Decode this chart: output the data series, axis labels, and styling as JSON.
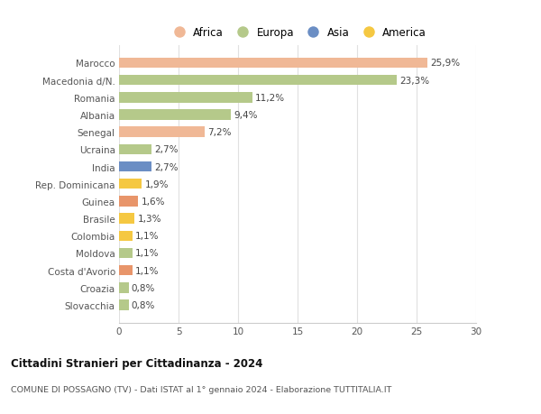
{
  "countries": [
    "Slovacchia",
    "Croazia",
    "Costa d'Avorio",
    "Moldova",
    "Colombia",
    "Brasile",
    "Guinea",
    "Rep. Dominicana",
    "India",
    "Ucraina",
    "Senegal",
    "Albania",
    "Romania",
    "Macedonia d/N.",
    "Marocco"
  ],
  "values": [
    0.8,
    0.8,
    1.1,
    1.1,
    1.1,
    1.3,
    1.6,
    1.9,
    2.7,
    2.7,
    7.2,
    9.4,
    11.2,
    23.3,
    25.9
  ],
  "labels": [
    "0,8%",
    "0,8%",
    "1,1%",
    "1,1%",
    "1,1%",
    "1,3%",
    "1,6%",
    "1,9%",
    "2,7%",
    "2,7%",
    "7,2%",
    "9,4%",
    "11,2%",
    "23,3%",
    "25,9%"
  ],
  "colors": [
    "#b5c98a",
    "#b5c98a",
    "#e8956a",
    "#b5c98a",
    "#f5c842",
    "#f5c842",
    "#e8956a",
    "#f5c842",
    "#6b8ec4",
    "#b5c98a",
    "#f0b896",
    "#b5c98a",
    "#b5c98a",
    "#b5c98a",
    "#f0b896"
  ],
  "continents": [
    "Europa",
    "Europa",
    "Africa",
    "Europa",
    "America",
    "America",
    "Africa",
    "America",
    "Asia",
    "Europa",
    "Africa",
    "Europa",
    "Europa",
    "Europa",
    "Africa"
  ],
  "legend_labels": [
    "Africa",
    "Europa",
    "Asia",
    "America"
  ],
  "legend_colors": [
    "#f0b896",
    "#b5c98a",
    "#6b8ec4",
    "#f5c842"
  ],
  "title": "Cittadini Stranieri per Cittadinanza - 2024",
  "subtitle1": "COMUNE DI POSSAGNO (TV) - Dati ISTAT al 1° gennaio 2024 - Elaborazione TUTTITALIA.IT",
  "xlim": [
    0,
    30
  ],
  "xticks": [
    0,
    5,
    10,
    15,
    20,
    25,
    30
  ],
  "bg_color": "#ffffff",
  "grid_color": "#e0e0e0"
}
